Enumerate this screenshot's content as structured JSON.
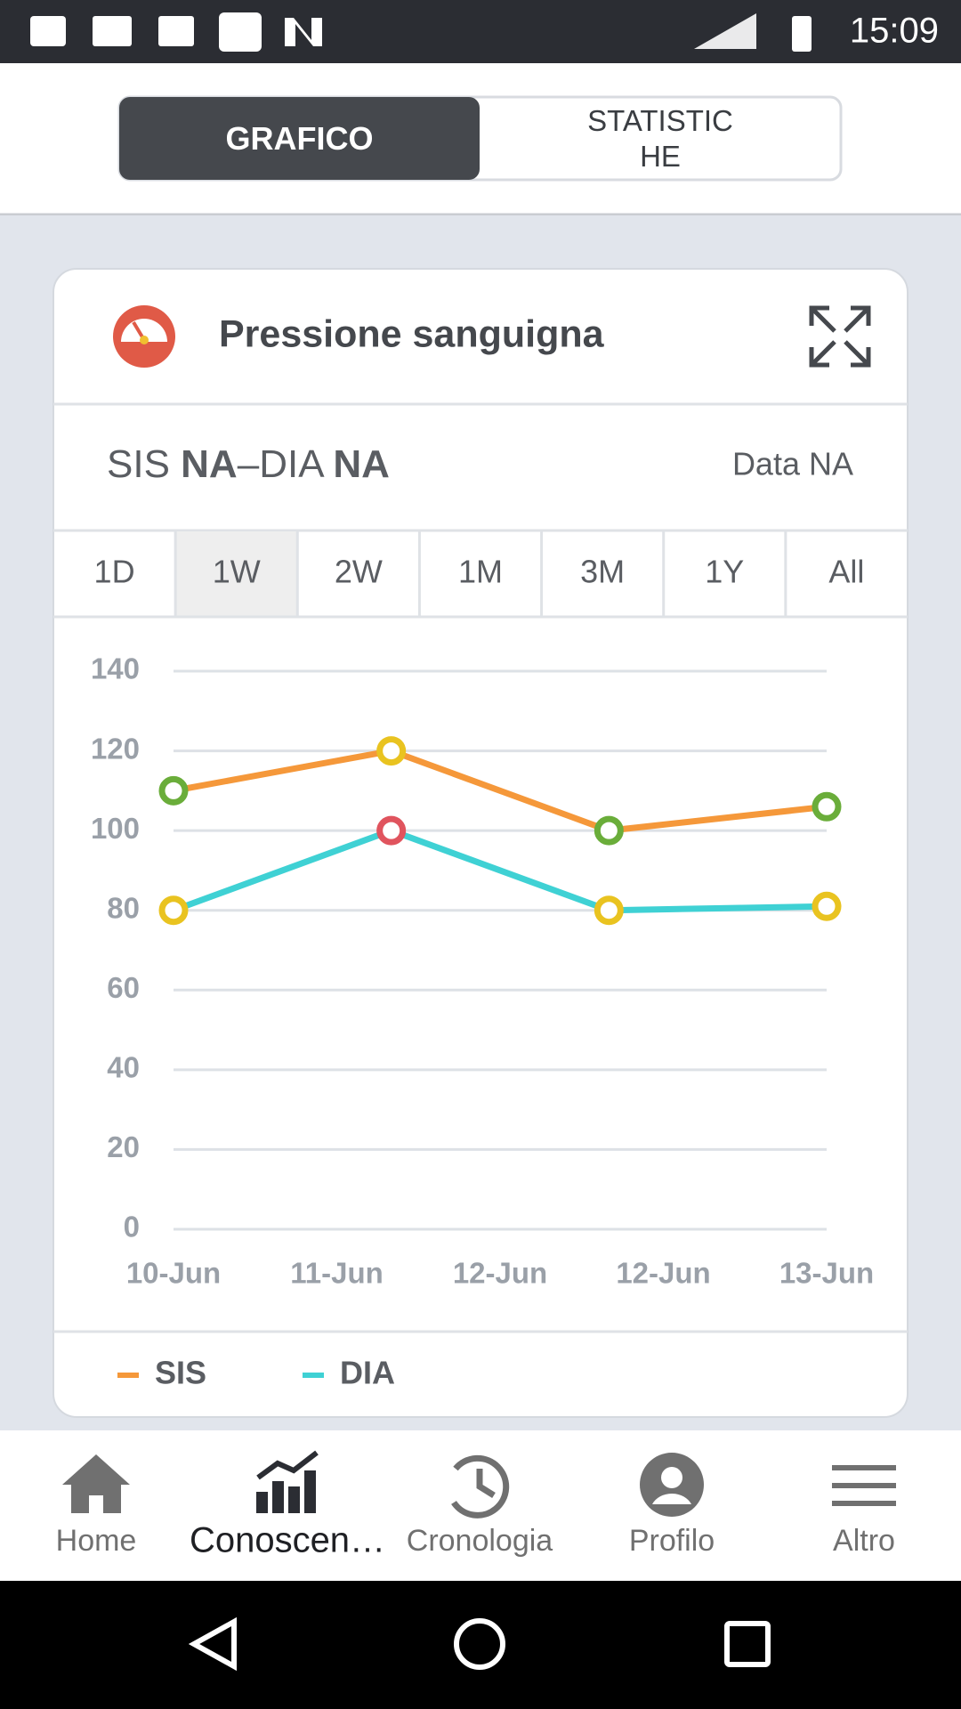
{
  "status_bar": {
    "time": "15:09"
  },
  "tabs": [
    "GRAFICO",
    "STATISTICHE"
  ],
  "card": {
    "title": "Pressione sanguigna",
    "reading": {
      "sis_label": "SIS",
      "sis_value": "NA",
      "separator": "–",
      "dia_label": "DIA",
      "dia_value": "NA"
    },
    "date": "Data NA",
    "ranges": [
      "1D",
      "1W",
      "2W",
      "1M",
      "3M",
      "1Y",
      "All"
    ]
  },
  "chart_data": {
    "type": "line",
    "x_labels": [
      "10-Jun",
      "11-Jun",
      "12-Jun",
      "12-Jun",
      "13-Jun"
    ],
    "ylim": [
      0,
      140
    ],
    "yticks": [
      0,
      20,
      40,
      60,
      80,
      100,
      120,
      140
    ],
    "grid": true,
    "series": [
      {
        "name": "SIS",
        "color": "#f5983a",
        "values": [
          110,
          120,
          100,
          106
        ],
        "marker_colors": [
          "#6aad3a",
          "#e9c320",
          "#6aad3a",
          "#6aad3a"
        ]
      },
      {
        "name": "DIA",
        "color": "#3fd1d4",
        "values": [
          80,
          100,
          80,
          81
        ],
        "marker_colors": [
          "#e9c320",
          "#e0545e",
          "#e9c320",
          "#e9c320"
        ]
      }
    ]
  },
  "nav": [
    "Home",
    "Conoscen…",
    "Cronologia",
    "Profilo",
    "Altro"
  ]
}
